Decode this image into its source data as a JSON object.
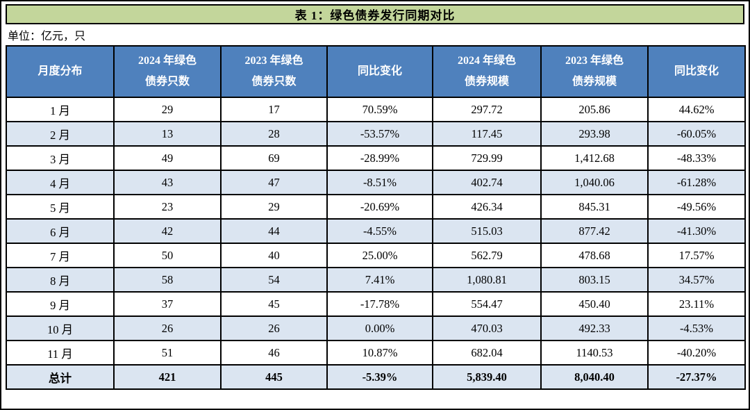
{
  "title": "表 1：绿色债券发行同期对比",
  "unit_label": "单位：亿元，只",
  "colors": {
    "title_band_green": "#c3d69b",
    "header_blue": "#4f81bd",
    "alt_row_blue": "#dbe5f1",
    "border_black": "#000000",
    "header_text": "#ffffff"
  },
  "table": {
    "headers": [
      {
        "lines": [
          "月度分布"
        ]
      },
      {
        "lines": [
          "2024 年绿色",
          "债券只数"
        ]
      },
      {
        "lines": [
          "2023 年绿色",
          "债券只数"
        ]
      },
      {
        "lines": [
          "同比变化"
        ]
      },
      {
        "lines": [
          "2024 年绿色",
          "债券规模"
        ]
      },
      {
        "lines": [
          "2023 年绿色",
          "债券规模"
        ]
      },
      {
        "lines": [
          "同比变化"
        ]
      }
    ],
    "rows": [
      [
        "1 月",
        "29",
        "17",
        "70.59%",
        "297.72",
        "205.86",
        "44.62%"
      ],
      [
        "2 月",
        "13",
        "28",
        "-53.57%",
        "117.45",
        "293.98",
        "-60.05%"
      ],
      [
        "3 月",
        "49",
        "69",
        "-28.99%",
        "729.99",
        "1,412.68",
        "-48.33%"
      ],
      [
        "4 月",
        "43",
        "47",
        "-8.51%",
        "402.74",
        "1,040.06",
        "-61.28%"
      ],
      [
        "5 月",
        "23",
        "29",
        "-20.69%",
        "426.34",
        "845.31",
        "-49.56%"
      ],
      [
        "6 月",
        "42",
        "44",
        "-4.55%",
        "515.03",
        "877.42",
        "-41.30%"
      ],
      [
        "7 月",
        "50",
        "40",
        "25.00%",
        "562.79",
        "478.68",
        "17.57%"
      ],
      [
        "8 月",
        "58",
        "54",
        "7.41%",
        "1,080.81",
        "803.15",
        "34.57%"
      ],
      [
        "9 月",
        "37",
        "45",
        "-17.78%",
        "554.47",
        "450.40",
        "23.11%"
      ],
      [
        "10 月",
        "26",
        "26",
        "0.00%",
        "470.03",
        "492.33",
        "-4.53%"
      ],
      [
        "11 月",
        "51",
        "46",
        "10.87%",
        "682.04",
        "1140.53",
        "-40.20%"
      ],
      [
        "总计",
        "421",
        "445",
        "-5.39%",
        "5,839.40",
        "8,040.40",
        "-27.37%"
      ]
    ],
    "total_label": "总计"
  }
}
